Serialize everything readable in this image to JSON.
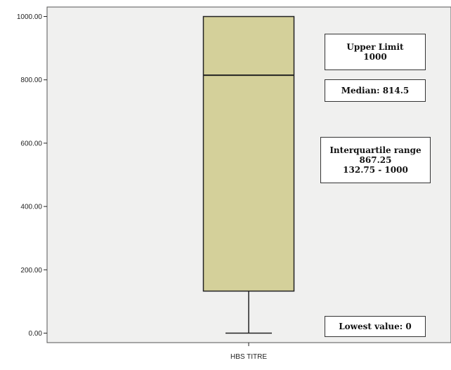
{
  "chart_data": {
    "type": "boxplot",
    "title": "",
    "xlabel": "",
    "ylabel": "",
    "categories": [
      "HBS TITRE"
    ],
    "ylim": [
      -30,
      1030
    ],
    "yticks": [
      "0.00",
      "200.00",
      "400.00",
      "600.00",
      "800.00",
      "1000.00"
    ],
    "ytick_values": [
      0,
      200,
      400,
      600,
      800,
      1000
    ],
    "box": {
      "min": 0,
      "q1": 132.75,
      "median": 814.5,
      "q3": 1000,
      "max": 1000
    },
    "annotations": {
      "upper_limit": {
        "title": "Upper Limit",
        "value": "1000"
      },
      "median": {
        "text": "Median: 814.5"
      },
      "iqr": {
        "title": "Interquartile range",
        "value": "867.25",
        "range": "132.75 - 1000"
      },
      "lowest": {
        "text": "Lowest value: 0"
      }
    },
    "colors": {
      "background": "#f0f0ef",
      "box_fill": "#d4d09a",
      "line": "#222222"
    }
  }
}
